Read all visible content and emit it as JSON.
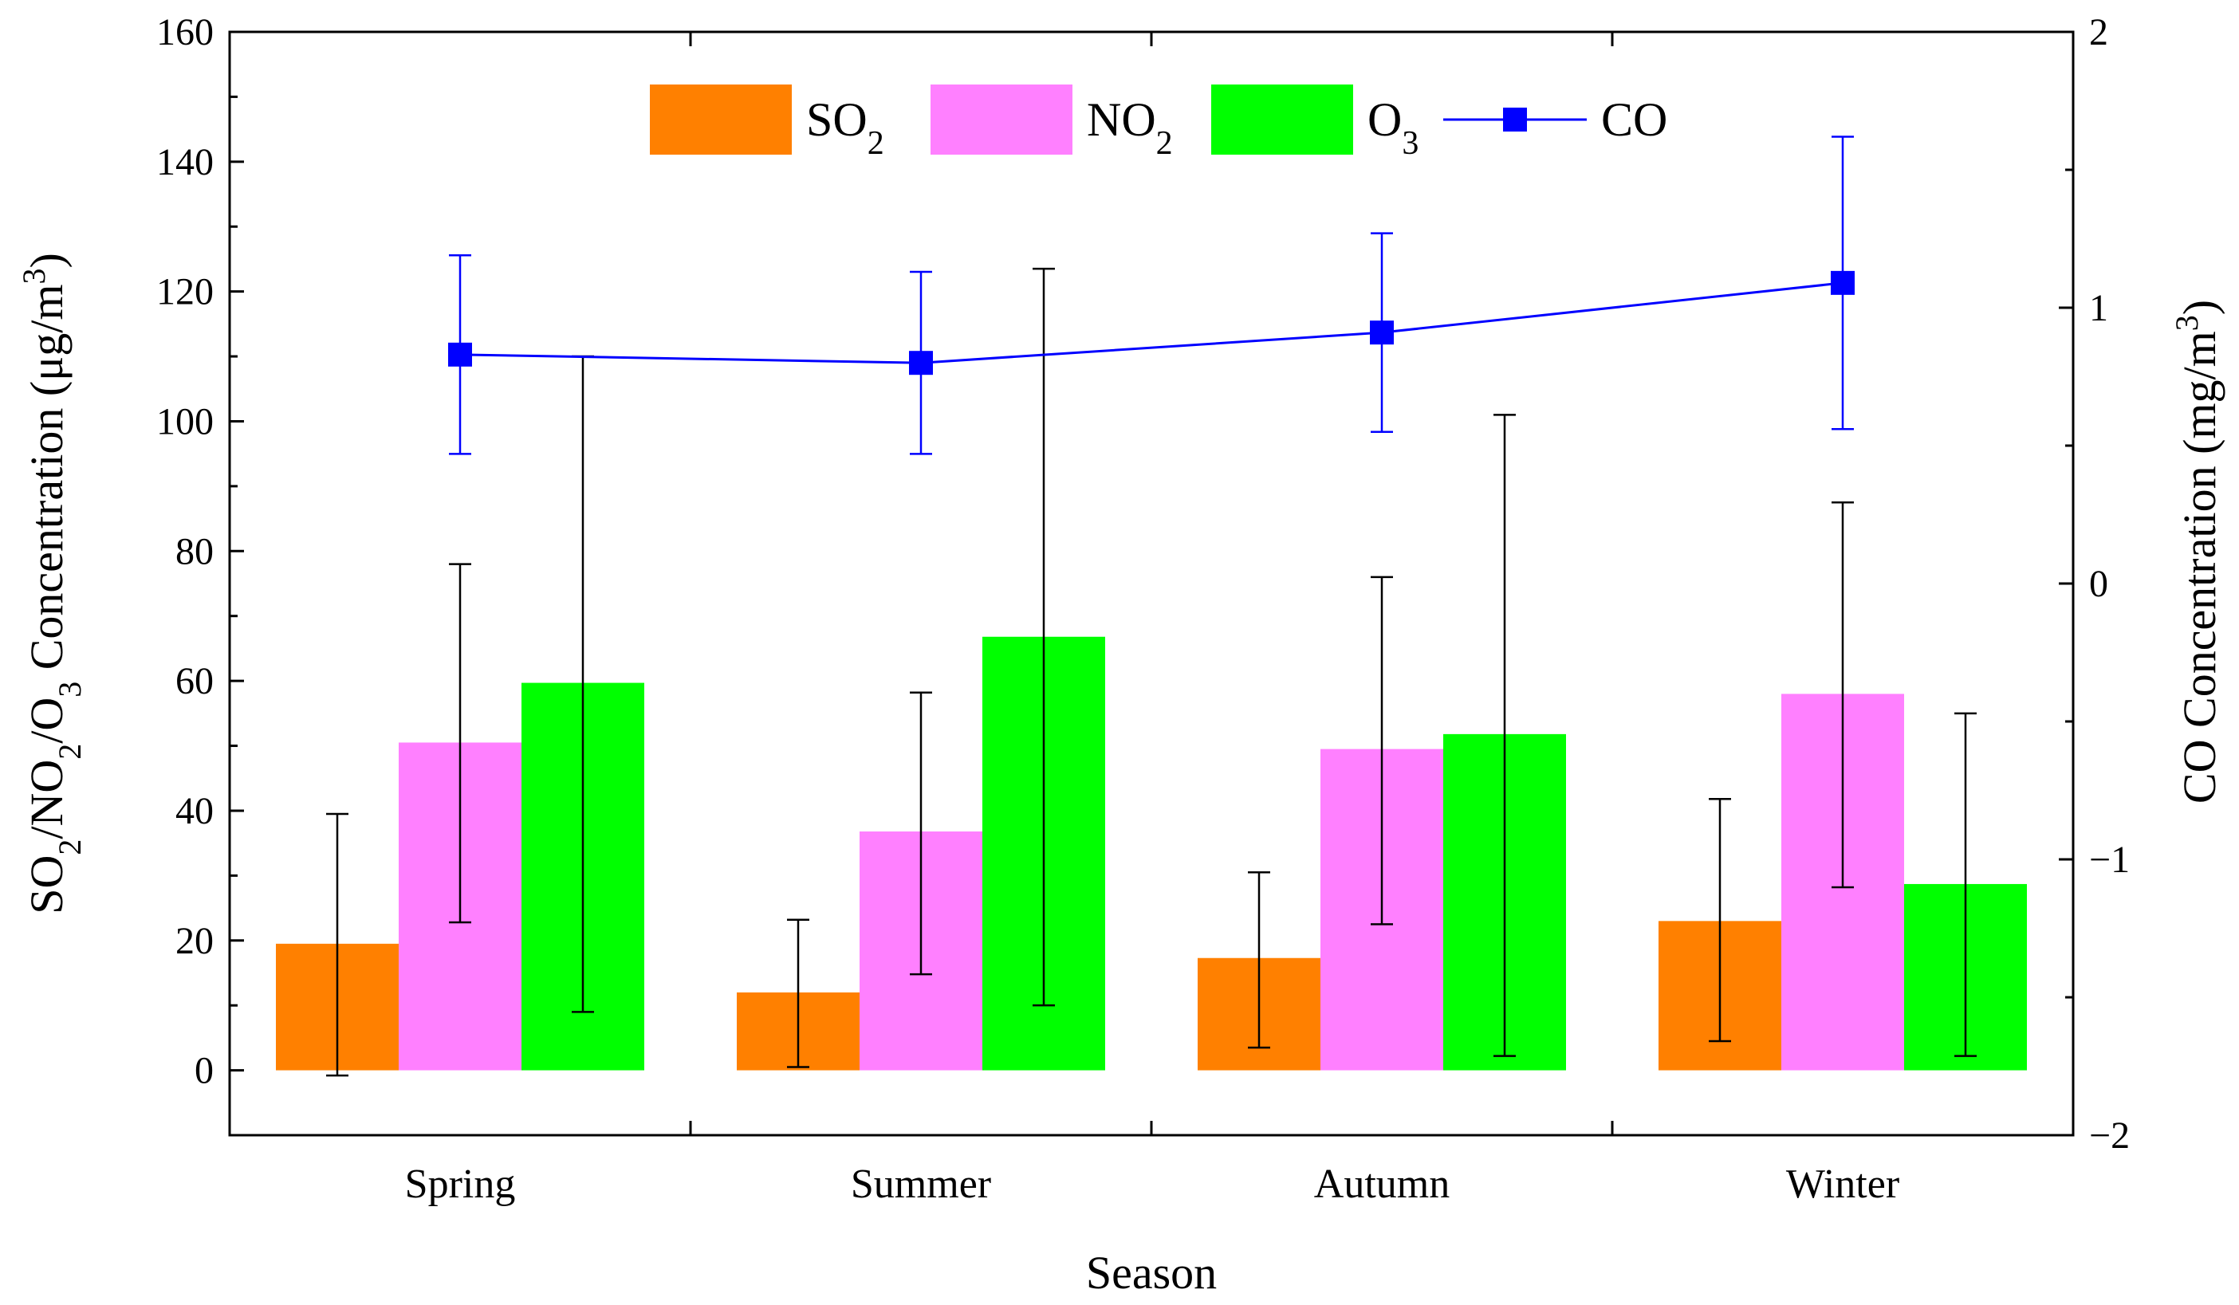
{
  "chart_data": {
    "type": "bar",
    "xlabel": "Season",
    "categories": [
      "Spring",
      "Summer",
      "Autumn",
      "Winter"
    ],
    "left_axis": {
      "label": "SO2/NO2/O3 Concentration (μg/m3)",
      "label_parts": [
        {
          "t": "SO"
        },
        {
          "t": "2",
          "sub": true
        },
        {
          "t": "/NO"
        },
        {
          "t": "2",
          "sub": true
        },
        {
          "t": "/O"
        },
        {
          "t": "3",
          "sub": true
        },
        {
          "t": " Concentration (μg/m"
        },
        {
          "t": "3",
          "sup": true
        },
        {
          "t": ")"
        }
      ],
      "ylim": [
        -10,
        160
      ],
      "ticks": [
        0,
        20,
        40,
        60,
        80,
        100,
        120,
        140,
        160
      ],
      "tick_labels": [
        "0",
        "20",
        "40",
        "60",
        "80",
        "100",
        "120",
        "140",
        "160"
      ]
    },
    "right_axis": {
      "label": "CO Concentration (mg/m3)",
      "label_parts": [
        {
          "t": "CO Concentration (mg/m"
        },
        {
          "t": "3",
          "sup": true
        },
        {
          "t": ")"
        }
      ],
      "ylim": [
        -2,
        2
      ],
      "ticks": [
        -2,
        -1,
        0,
        1,
        2
      ],
      "tick_labels": [
        "−2",
        "−1",
        "0",
        "1",
        "2"
      ]
    },
    "bar_series": [
      {
        "name": "SO2",
        "label_main": "SO",
        "label_sub": "2",
        "color": "#ff8000",
        "values": [
          19.5,
          12,
          17.3,
          23
        ],
        "err_upper": [
          39.5,
          23.2,
          30.5,
          41.8
        ],
        "err_lower": [
          -0.8,
          0.5,
          3.5,
          4.5
        ]
      },
      {
        "name": "NO2",
        "label_main": "NO",
        "label_sub": "2",
        "color": "#ff80ff",
        "values": [
          50.5,
          36.8,
          49.5,
          58
        ],
        "err_upper": [
          78,
          58.2,
          76,
          87.5
        ],
        "err_lower": [
          22.8,
          14.8,
          22.5,
          28.2
        ]
      },
      {
        "name": "O3",
        "label_main": "O",
        "label_sub": "3",
        "color": "#00ff00",
        "values": [
          59.7,
          66.8,
          51.8,
          28.7
        ],
        "err_upper": [
          110,
          123.5,
          101,
          55
        ],
        "err_lower": [
          9,
          10,
          2.2,
          2.2
        ]
      }
    ],
    "line_series": {
      "name": "CO",
      "label_main": "CO",
      "color": "#0000ff",
      "axis": "right",
      "values": [
        0.83,
        0.8,
        0.91,
        1.09
      ],
      "err_upper": [
        1.19,
        1.13,
        1.27,
        1.62
      ],
      "err_lower": [
        0.47,
        0.47,
        0.55,
        0.56
      ]
    },
    "legend_position": "top-center",
    "grid": false
  }
}
